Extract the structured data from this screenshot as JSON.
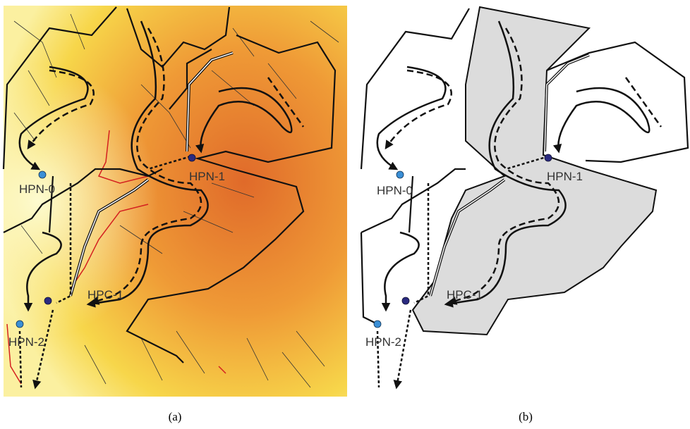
{
  "panels": [
    {
      "caption": "(a)",
      "labels": [
        "HPN-0",
        "HPN-1",
        "HPC-1",
        "HPN-2"
      ]
    },
    {
      "caption": "(b)",
      "labels": [
        "HPN-0",
        "HPN-1",
        "HPC-1",
        "HPN-2"
      ]
    }
  ]
}
